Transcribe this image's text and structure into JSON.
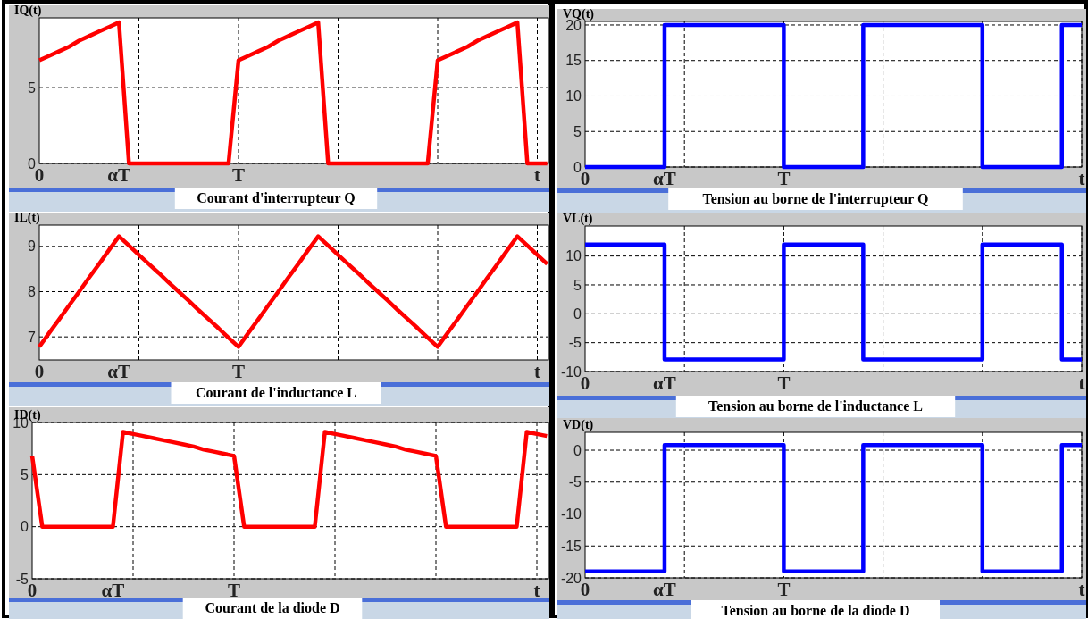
{
  "chart_data": [
    {
      "type": "line",
      "title": "Courant d'interrupteur Q",
      "ylabel": "IQ(t)",
      "categories": [
        "0",
        null,
        null,
        null,
        null,
        null,
        null,
        null,
        "αT",
        null,
        null,
        null,
        null,
        null,
        null,
        null,
        null,
        null,
        null,
        null,
        "T",
        null,
        null,
        null,
        null,
        null,
        null,
        null,
        null,
        null,
        null,
        null,
        null,
        null,
        null,
        null,
        null,
        null,
        null,
        null,
        null,
        null,
        null,
        null,
        null,
        null,
        null,
        null,
        null,
        null,
        "t",
        null
      ],
      "ylim": [
        0,
        9.6
      ],
      "yticks": [
        0,
        5
      ],
      "grid": true,
      "marker": "none",
      "line_style": "solid",
      "series": [
        {
          "color": "#ff0000",
          "values": [
            6.8,
            7.1,
            7.4,
            7.7,
            8.1,
            8.4,
            8.7,
            9.0,
            9.3,
            0,
            0,
            0,
            0,
            0,
            0,
            0,
            0,
            0,
            0,
            0,
            6.8,
            7.1,
            7.4,
            7.7,
            8.1,
            8.4,
            8.7,
            9.0,
            9.3,
            0,
            0,
            0,
            0,
            0,
            0,
            0,
            0,
            0,
            0,
            0,
            6.8,
            7.1,
            7.4,
            7.7,
            8.1,
            8.4,
            8.7,
            9.0,
            9.3,
            0,
            0,
            0
          ]
        }
      ]
    },
    {
      "type": "line",
      "title": "Courant de l'inductance L",
      "ylabel": "IL(t)",
      "categories": [
        "0",
        null,
        null,
        null,
        null,
        null,
        null,
        null,
        "αT",
        null,
        null,
        null,
        null,
        null,
        null,
        null,
        null,
        null,
        null,
        null,
        "T",
        null,
        null,
        null,
        null,
        null,
        null,
        null,
        null,
        null,
        null,
        null,
        null,
        null,
        null,
        null,
        null,
        null,
        null,
        null,
        null,
        null,
        null,
        null,
        null,
        null,
        null,
        null,
        null,
        null,
        "t",
        null
      ],
      "ylim": [
        6.49,
        9.47
      ],
      "yticks": [
        7,
        8,
        9
      ],
      "grid": true,
      "marker": "none",
      "line_style": "solid",
      "series": [
        {
          "color": "#ff0000",
          "values": [
            6.78,
            7.09,
            7.39,
            7.7,
            8.0,
            8.31,
            8.61,
            8.92,
            9.22,
            9.02,
            8.81,
            8.61,
            8.41,
            8.2,
            8.0,
            7.8,
            7.59,
            7.39,
            7.19,
            6.98,
            6.78,
            7.09,
            7.39,
            7.7,
            8.0,
            8.31,
            8.61,
            8.92,
            9.22,
            9.02,
            8.81,
            8.61,
            8.41,
            8.2,
            8.0,
            7.8,
            7.59,
            7.39,
            7.19,
            6.98,
            6.78,
            7.09,
            7.39,
            7.7,
            8.0,
            8.31,
            8.61,
            8.92,
            9.22,
            9.02,
            8.81,
            8.61
          ]
        }
      ]
    },
    {
      "type": "line",
      "title": "Courant de la diode D",
      "ylabel": "ID(t)",
      "categories": [
        "0",
        null,
        null,
        null,
        null,
        null,
        null,
        null,
        "αT",
        null,
        null,
        null,
        null,
        null,
        null,
        null,
        null,
        null,
        null,
        null,
        "T",
        null,
        null,
        null,
        null,
        null,
        null,
        null,
        null,
        null,
        null,
        null,
        null,
        null,
        null,
        null,
        null,
        null,
        null,
        null,
        null,
        null,
        null,
        null,
        null,
        null,
        null,
        null,
        null,
        null,
        "t",
        null
      ],
      "ylim": [
        -5,
        10
      ],
      "yticks": [
        -5,
        0,
        5,
        10
      ],
      "grid": true,
      "marker": "none",
      "line_style": "solid",
      "series": [
        {
          "color": "#ff0000",
          "values": [
            6.8,
            0,
            0,
            0,
            0,
            0,
            0,
            0,
            0,
            9.1,
            8.9,
            8.7,
            8.5,
            8.3,
            8.1,
            7.9,
            7.7,
            7.4,
            7.2,
            7.0,
            6.8,
            0,
            0,
            0,
            0,
            0,
            0,
            0,
            0,
            9.1,
            8.9,
            8.7,
            8.5,
            8.3,
            8.1,
            7.9,
            7.7,
            7.4,
            7.2,
            7.0,
            6.8,
            0,
            0,
            0,
            0,
            0,
            0,
            0,
            0,
            9.1,
            8.9,
            8.7
          ]
        }
      ]
    },
    {
      "type": "step",
      "title": "Tension au borne de l'interrupteur Q",
      "ylabel": "VQ(t)",
      "categories": [
        "0",
        null,
        null,
        null,
        null,
        null,
        null,
        null,
        "αT",
        null,
        null,
        null,
        null,
        null,
        null,
        null,
        null,
        null,
        null,
        null,
        "T",
        null,
        null,
        null,
        null,
        null,
        null,
        null,
        null,
        null,
        null,
        null,
        null,
        null,
        null,
        null,
        null,
        null,
        null,
        null,
        null,
        null,
        null,
        null,
        null,
        null,
        null,
        null,
        null,
        null,
        "t"
      ],
      "ylim": [
        0,
        20.5
      ],
      "yticks": [
        0,
        5,
        10,
        15,
        20
      ],
      "grid": true,
      "marker": "none",
      "line_style": "solid",
      "series": [
        {
          "color": "#0000ff",
          "values": [
            0,
            0,
            0,
            0,
            0,
            0,
            0,
            0,
            20,
            20,
            20,
            20,
            20,
            20,
            20,
            20,
            20,
            20,
            20,
            20,
            0,
            0,
            0,
            0,
            0,
            0,
            0,
            0,
            20,
            20,
            20,
            20,
            20,
            20,
            20,
            20,
            20,
            20,
            20,
            20,
            0,
            0,
            0,
            0,
            0,
            0,
            0,
            0,
            20,
            20,
            20
          ]
        }
      ]
    },
    {
      "type": "step",
      "title": "Tension au borne de l'inductance L",
      "ylabel": "VL(t)",
      "categories": [
        "0",
        null,
        null,
        null,
        null,
        null,
        null,
        null,
        "αT",
        null,
        null,
        null,
        null,
        null,
        null,
        null,
        null,
        null,
        null,
        null,
        "T",
        null,
        null,
        null,
        null,
        null,
        null,
        null,
        null,
        null,
        null,
        null,
        null,
        null,
        null,
        null,
        null,
        null,
        null,
        null,
        null,
        null,
        null,
        null,
        null,
        null,
        null,
        null,
        null,
        null,
        "t"
      ],
      "ylim": [
        -10,
        15.2
      ],
      "yticks": [
        -10,
        -5,
        0,
        5,
        10
      ],
      "grid": true,
      "marker": "none",
      "line_style": "solid",
      "series": [
        {
          "color": "#0000ff",
          "values": [
            12,
            12,
            12,
            12,
            12,
            12,
            12,
            12,
            -7.9,
            -7.9,
            -7.9,
            -7.9,
            -7.9,
            -7.9,
            -7.9,
            -7.9,
            -7.9,
            -7.9,
            -7.9,
            -7.9,
            12,
            12,
            12,
            12,
            12,
            12,
            12,
            12,
            -7.9,
            -7.9,
            -7.9,
            -7.9,
            -7.9,
            -7.9,
            -7.9,
            -7.9,
            -7.9,
            -7.9,
            -7.9,
            -7.9,
            12,
            12,
            12,
            12,
            12,
            12,
            12,
            12,
            -7.9,
            -7.9,
            -7.9
          ]
        }
      ]
    },
    {
      "type": "step",
      "title": "Tension au borne de la diode D",
      "ylabel": "VD(t)",
      "categories": [
        "0",
        null,
        null,
        null,
        null,
        null,
        null,
        null,
        "αT",
        null,
        null,
        null,
        null,
        null,
        null,
        null,
        null,
        null,
        null,
        null,
        "T",
        null,
        null,
        null,
        null,
        null,
        null,
        null,
        null,
        null,
        null,
        null,
        null,
        null,
        null,
        null,
        null,
        null,
        null,
        null,
        null,
        null,
        null,
        null,
        null,
        null,
        null,
        null,
        null,
        null,
        "t"
      ],
      "ylim": [
        -20,
        2.8
      ],
      "yticks": [
        -20,
        -15,
        -10,
        -5,
        0
      ],
      "grid": true,
      "marker": "none",
      "line_style": "solid",
      "series": [
        {
          "color": "#0000ff",
          "values": [
            -19,
            -19,
            -19,
            -19,
            -19,
            -19,
            -19,
            -19,
            0.8,
            0.8,
            0.8,
            0.8,
            0.8,
            0.8,
            0.8,
            0.8,
            0.8,
            0.8,
            0.8,
            0.8,
            -19,
            -19,
            -19,
            -19,
            -19,
            -19,
            -19,
            -19,
            0.8,
            0.8,
            0.8,
            0.8,
            0.8,
            0.8,
            0.8,
            0.8,
            0.8,
            0.8,
            0.8,
            0.8,
            -19,
            -19,
            -19,
            -19,
            -19,
            -19,
            -19,
            -19,
            0.8,
            0.8,
            0.8
          ]
        }
      ]
    }
  ]
}
